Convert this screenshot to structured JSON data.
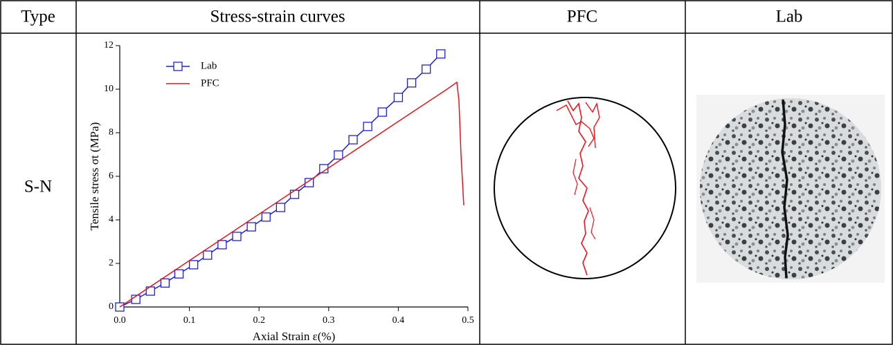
{
  "table": {
    "header": [
      "Type",
      "Stress-strain curves",
      "PFC",
      "Lab"
    ],
    "rows": [
      [
        "S-N"
      ]
    ]
  },
  "chart_data": {
    "type": "line",
    "xlabel": "Axial Strain ε(%)",
    "ylabel": "Tensile stress  σt (MPa)",
    "xlim": [
      0,
      0.5
    ],
    "ylim": [
      0,
      12
    ],
    "xticks": [
      {
        "value": 0,
        "label": "0.0"
      },
      0.1,
      0.2,
      0.3,
      0.4,
      0.5
    ],
    "yticks": [
      0,
      2,
      4,
      6,
      8,
      10,
      12
    ],
    "legend": "upper left",
    "series": [
      {
        "name": "Lab",
        "color": "#1f1fd6",
        "marker": "square",
        "x": [
          0,
          0.023,
          0.044,
          0.065,
          0.085,
          0.106,
          0.126,
          0.147,
          0.168,
          0.189,
          0.21,
          0.231,
          0.251,
          0.272,
          0.293,
          0.314,
          0.335,
          0.356,
          0.377,
          0.4,
          0.419,
          0.44,
          0.461
        ],
        "values": [
          0,
          0.35,
          0.73,
          1.1,
          1.52,
          1.94,
          2.38,
          2.86,
          3.24,
          3.68,
          4.13,
          4.57,
          5.17,
          5.71,
          6.35,
          6.98,
          7.68,
          8.29,
          8.95,
          9.62,
          10.29,
          10.92,
          11.62
        ]
      },
      {
        "name": "PFC",
        "color": "#e0141e",
        "marker": null,
        "x": [
          0,
          0.1,
          0.2,
          0.3,
          0.4,
          0.47,
          0.484,
          0.487,
          0.49,
          0.494
        ],
        "values": [
          0,
          2.13,
          4.26,
          6.39,
          8.52,
          10.0,
          10.32,
          9.5,
          7.0,
          4.67
        ]
      }
    ]
  }
}
